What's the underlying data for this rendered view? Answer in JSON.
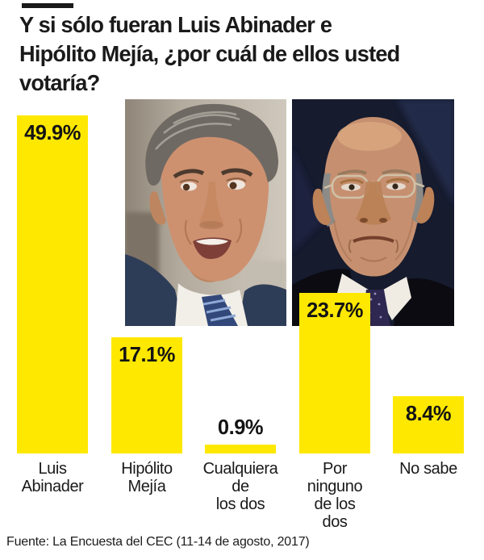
{
  "header": {
    "title_lines": [
      "Y si sólo fueran Luis Abinader e",
      "Hipólito Mejía, ¿por cuál de ellos usted",
      "votaría?"
    ]
  },
  "photos": {
    "left_subject": "Luis Abinader",
    "right_subject": "Hipólito Mejía"
  },
  "chart_data": {
    "type": "bar",
    "title": "Y si sólo fueran Luis Abinader e Hipólito Mejía, ¿por cuál de ellos usted votaría?",
    "categories": [
      "Luis Abinader",
      "Hipólito Mejía",
      "Cualquiera de los dos",
      "Por ninguno de los dos",
      "No sabe"
    ],
    "category_lines": [
      [
        "Luis",
        "Abinader"
      ],
      [
        "Hipólito",
        "Mejía"
      ],
      [
        "Cualquiera",
        "de",
        "los dos"
      ],
      [
        "Por",
        "ninguno",
        "de los",
        "dos"
      ],
      [
        "No sabe"
      ]
    ],
    "values": [
      49.9,
      17.1,
      0.9,
      23.7,
      8.4
    ],
    "value_labels": [
      "49.9%",
      "17.1%",
      "0.9%",
      "23.7%",
      "8.4%"
    ],
    "value_suffix": "%",
    "xlabel": "",
    "ylabel": "",
    "ylim": [
      0,
      50
    ],
    "grid": false,
    "legend": false,
    "bar_color": "#ffe800",
    "text_color": "#1a1a1a",
    "source": "Fuente: La Encuesta del CEC (11-14 de agosto, 2017)"
  }
}
